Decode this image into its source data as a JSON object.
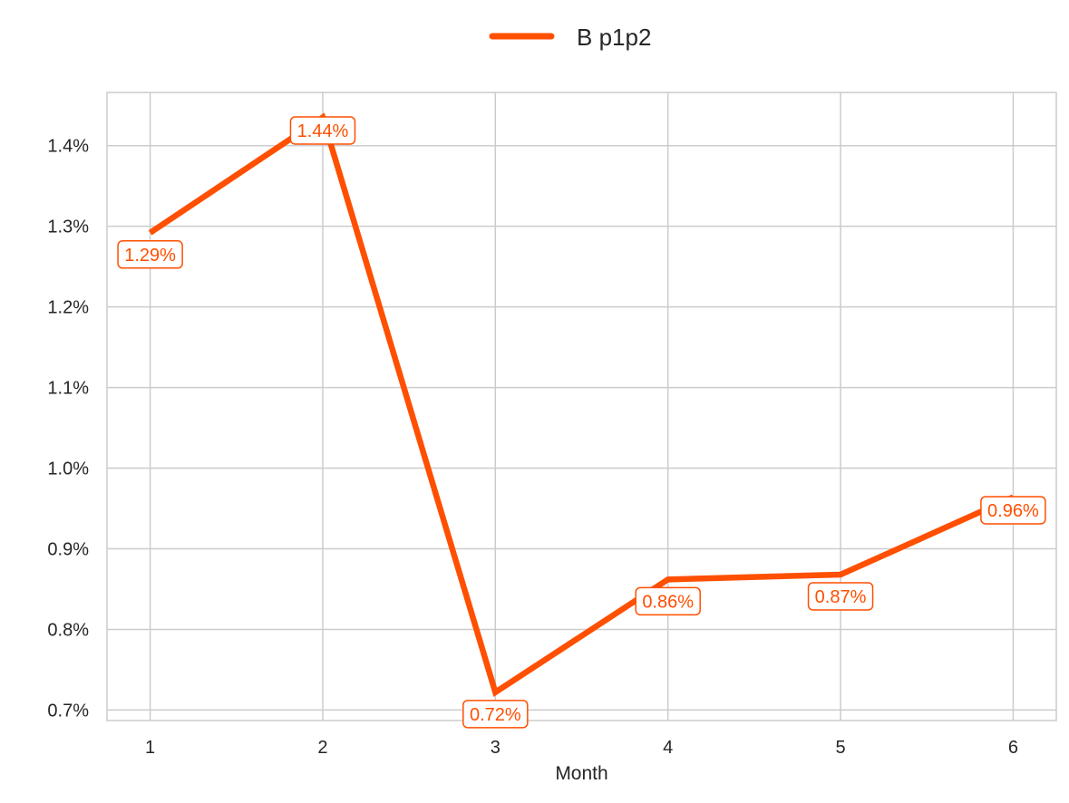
{
  "chart_data": {
    "type": "line",
    "title": "",
    "xlabel": "Month",
    "ylabel": "",
    "x": [
      1,
      2,
      3,
      4,
      5,
      6
    ],
    "xlim": [
      0.75,
      6.25
    ],
    "ylim": [
      0.687,
      1.466
    ],
    "yticks": [
      0.7,
      0.8,
      0.9,
      1.0,
      1.1,
      1.2,
      1.3,
      1.4
    ],
    "ytick_labels": [
      "0.7%",
      "0.8%",
      "0.9%",
      "1.0%",
      "1.1%",
      "1.2%",
      "1.3%",
      "1.4%"
    ],
    "xtick_labels": [
      "1",
      "2",
      "3",
      "4",
      "5",
      "6"
    ],
    "grid": true,
    "legend_position": "top-center",
    "series": [
      {
        "name": "B p1p2",
        "color": "#FF4F00",
        "values": [
          1.292,
          1.435,
          0.722,
          0.862,
          0.868,
          0.964
        ],
        "labels": [
          "1.29%",
          "1.44%",
          "0.72%",
          "0.86%",
          "0.87%",
          "0.96%"
        ],
        "label_placement": [
          "below",
          "on",
          "below",
          "below",
          "below",
          "on"
        ]
      }
    ]
  }
}
